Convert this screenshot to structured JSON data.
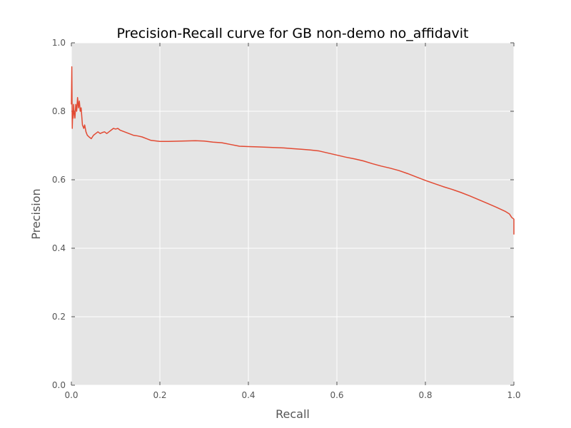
{
  "chart_data": {
    "type": "line",
    "title": "Precision-Recall curve for GB non-demo no_affidavit",
    "xlabel": "Recall",
    "ylabel": "Precision",
    "xlim": [
      0.0,
      1.0
    ],
    "ylim": [
      0.0,
      1.0
    ],
    "xticks": [
      "0.0",
      "0.2",
      "0.4",
      "0.6",
      "0.8",
      "1.0"
    ],
    "yticks": [
      "0.0",
      "0.2",
      "0.4",
      "0.6",
      "0.8",
      "1.0"
    ],
    "grid": true,
    "background": "#e5e5e5",
    "series": [
      {
        "color": "#e24a33",
        "x": [
          0.0,
          0.001,
          0.002,
          0.003,
          0.004,
          0.005,
          0.006,
          0.008,
          0.01,
          0.012,
          0.014,
          0.016,
          0.018,
          0.02,
          0.022,
          0.025,
          0.028,
          0.03,
          0.033,
          0.036,
          0.04,
          0.045,
          0.05,
          0.055,
          0.06,
          0.065,
          0.07,
          0.075,
          0.08,
          0.085,
          0.09,
          0.095,
          0.1,
          0.105,
          0.11,
          0.12,
          0.13,
          0.14,
          0.15,
          0.16,
          0.17,
          0.18,
          0.2,
          0.22,
          0.25,
          0.28,
          0.3,
          0.32,
          0.34,
          0.36,
          0.38,
          0.4,
          0.42,
          0.44,
          0.46,
          0.48,
          0.5,
          0.52,
          0.54,
          0.56,
          0.58,
          0.6,
          0.62,
          0.64,
          0.66,
          0.68,
          0.7,
          0.72,
          0.74,
          0.76,
          0.78,
          0.8,
          0.82,
          0.84,
          0.86,
          0.88,
          0.9,
          0.92,
          0.94,
          0.96,
          0.98,
          0.99,
          0.995,
          1.0,
          1.0
        ],
        "y": [
          0.82,
          0.93,
          0.75,
          0.8,
          0.78,
          0.82,
          0.8,
          0.78,
          0.82,
          0.8,
          0.84,
          0.81,
          0.83,
          0.8,
          0.81,
          0.76,
          0.75,
          0.76,
          0.74,
          0.73,
          0.725,
          0.72,
          0.73,
          0.735,
          0.74,
          0.735,
          0.738,
          0.74,
          0.735,
          0.74,
          0.745,
          0.75,
          0.748,
          0.75,
          0.745,
          0.74,
          0.735,
          0.73,
          0.728,
          0.725,
          0.72,
          0.715,
          0.712,
          0.712,
          0.713,
          0.714,
          0.713,
          0.71,
          0.708,
          0.703,
          0.698,
          0.697,
          0.696,
          0.695,
          0.694,
          0.693,
          0.691,
          0.689,
          0.687,
          0.684,
          0.678,
          0.672,
          0.666,
          0.661,
          0.655,
          0.647,
          0.64,
          0.634,
          0.627,
          0.618,
          0.608,
          0.598,
          0.589,
          0.58,
          0.572,
          0.563,
          0.553,
          0.542,
          0.531,
          0.52,
          0.508,
          0.5,
          0.49,
          0.485,
          0.44
        ]
      }
    ]
  }
}
